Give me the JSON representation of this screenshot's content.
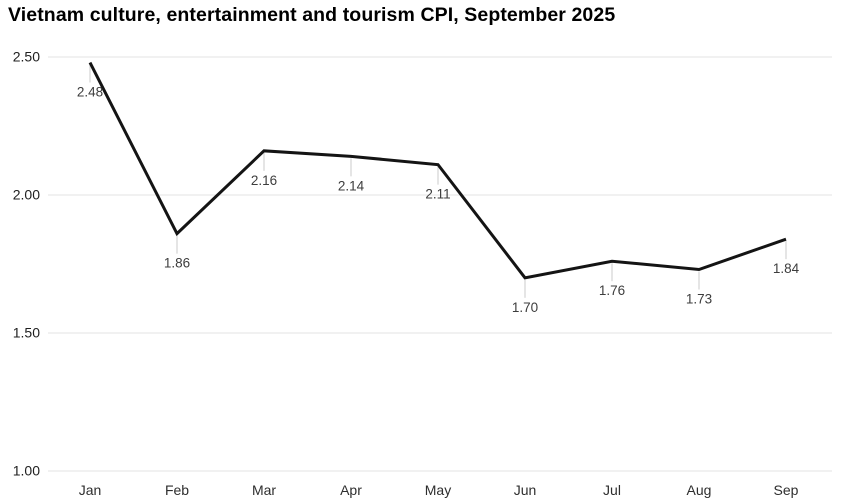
{
  "chart_data": {
    "type": "line",
    "title": "Vietnam culture, entertainment and tourism CPI, September 2025",
    "categories": [
      "Jan",
      "Feb",
      "Mar",
      "Apr",
      "May",
      "Jun",
      "Jul",
      "Aug",
      "Sep"
    ],
    "series": [
      {
        "name": "Vietnam culture, entertainment and tourism CPI",
        "values": [
          2.48,
          1.86,
          2.16,
          2.14,
          2.11,
          1.7,
          1.76,
          1.73,
          1.84
        ]
      }
    ],
    "data_labels": [
      "2.48",
      "1.86",
      "2.16",
      "2.14",
      "2.11",
      "1.70",
      "1.76",
      "1.73",
      "1.84"
    ],
    "xlabel": "",
    "ylabel": "",
    "ylim": [
      1.0,
      2.5
    ],
    "yticks": [
      2.5,
      2.0,
      1.5,
      1.0
    ],
    "ytick_labels": [
      "2.50",
      "2.00",
      "1.50",
      "1.00"
    ],
    "grid": true,
    "legend": "none",
    "colors": {
      "line": "#141414",
      "gridline": "#e3e3e3",
      "leader_line": "#dcdcdc",
      "title_text": "#000000",
      "axis_text": "#2e2e2e",
      "data_label_text": "#3d3d3d",
      "background": "#ffffff"
    }
  }
}
